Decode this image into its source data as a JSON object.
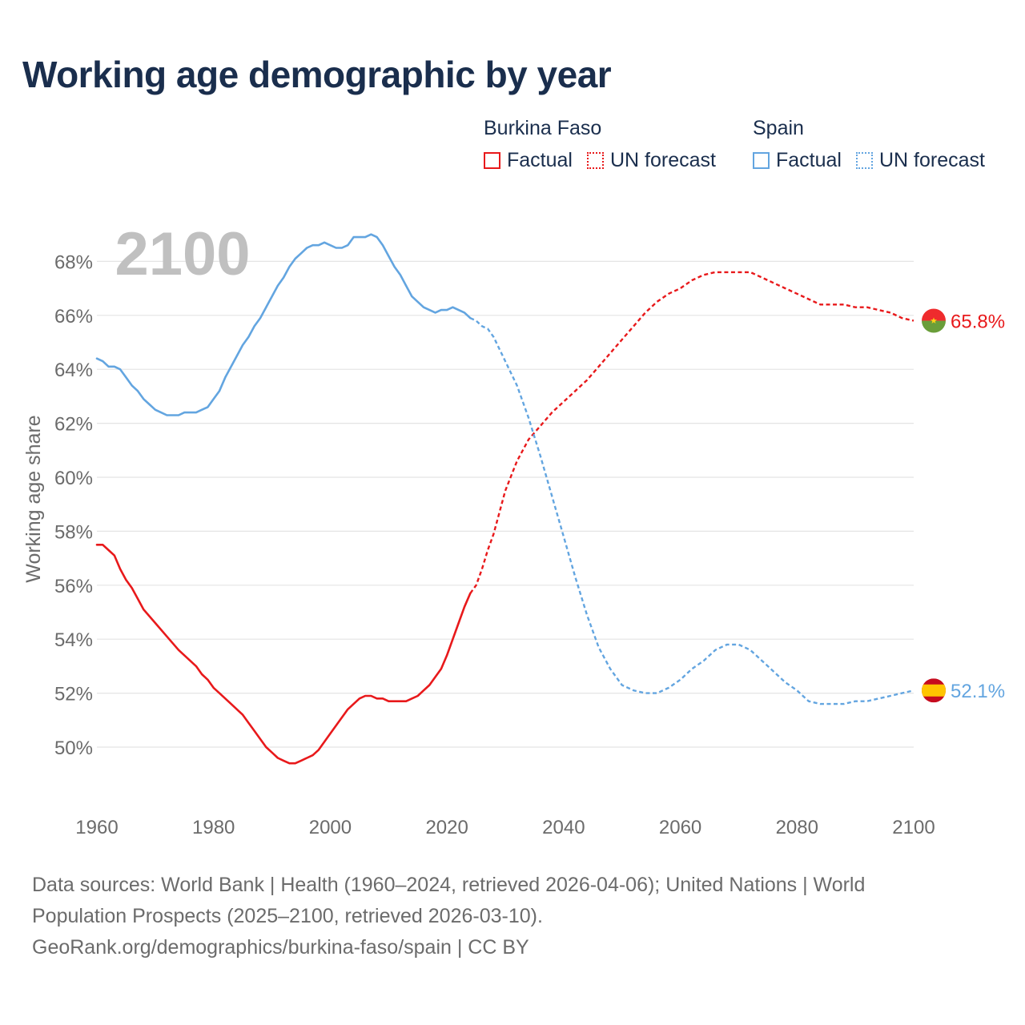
{
  "title": "Working age demographic by year",
  "legend": {
    "groups": [
      {
        "name": "Burkina Faso",
        "factual_label": "Factual",
        "forecast_label": "UN forecast",
        "color": "#e8191b"
      },
      {
        "name": "Spain",
        "factual_label": "Factual",
        "forecast_label": "UN forecast",
        "color": "#63a5e0"
      }
    ]
  },
  "footer": {
    "line1": "Data sources: World Bank | Health (1960–2024, retrieved 2026-04-06); United Nations | World",
    "line2": "Population Prospects (2025–2100, retrieved 2026-03-10).",
    "line3": "GeoRank.org/demographics/burkina-faso/spain | CC BY"
  },
  "chart_data": {
    "type": "line",
    "title": "Working age demographic by year",
    "year_overlay": "2100",
    "xlabel": "",
    "ylabel": "Working age share",
    "xlim": [
      1960,
      2100
    ],
    "ylim": [
      48,
      70
    ],
    "grid": true,
    "xticks": [
      1960,
      1980,
      2000,
      2020,
      2040,
      2060,
      2080,
      2100
    ],
    "xtick_labels": [
      "1960",
      "1980",
      "2000",
      "2020",
      "2040",
      "2060",
      "2080",
      "2100"
    ],
    "yticks": [
      50,
      52,
      54,
      56,
      58,
      60,
      62,
      64,
      66,
      68
    ],
    "ytick_labels": [
      "50%",
      "52%",
      "54%",
      "56%",
      "58%",
      "60%",
      "62%",
      "64%",
      "66%",
      "68%"
    ],
    "series": [
      {
        "name": "Burkina Faso",
        "color": "#e8191b",
        "end_label": "65.8%",
        "flag": "burkina-faso-flag",
        "factual": {
          "x": [
            1960,
            1961,
            1962,
            1963,
            1964,
            1965,
            1966,
            1967,
            1968,
            1970,
            1972,
            1974,
            1975,
            1976,
            1977,
            1978,
            1979,
            1980,
            1981,
            1983,
            1985,
            1986,
            1987,
            1988,
            1989,
            1990,
            1991,
            1992,
            1993,
            1994,
            1995,
            1996,
            1997,
            1998,
            2000,
            2002,
            2003,
            2004,
            2005,
            2006,
            2007,
            2008,
            2009,
            2010,
            2011,
            2012,
            2013,
            2014,
            2015,
            2016,
            2017,
            2018,
            2019,
            2020,
            2021,
            2022,
            2023,
            2024
          ],
          "y": [
            57.5,
            57.5,
            57.3,
            57.1,
            56.6,
            56.2,
            55.9,
            55.5,
            55.1,
            54.6,
            54.1,
            53.6,
            53.4,
            53.2,
            53.0,
            52.7,
            52.5,
            52.2,
            52.0,
            51.6,
            51.2,
            50.9,
            50.6,
            50.3,
            50.0,
            49.8,
            49.6,
            49.5,
            49.4,
            49.4,
            49.5,
            49.6,
            49.7,
            49.9,
            50.5,
            51.1,
            51.4,
            51.6,
            51.8,
            51.9,
            51.9,
            51.8,
            51.8,
            51.7,
            51.7,
            51.7,
            51.7,
            51.8,
            51.9,
            52.1,
            52.3,
            52.6,
            52.9,
            53.4,
            54.0,
            54.6,
            55.2,
            55.7
          ]
        },
        "forecast": {
          "x": [
            2024,
            2025,
            2026,
            2027,
            2028,
            2030,
            2032,
            2034,
            2036,
            2038,
            2040,
            2042,
            2044,
            2046,
            2048,
            2050,
            2052,
            2054,
            2056,
            2058,
            2060,
            2062,
            2064,
            2066,
            2068,
            2070,
            2072,
            2074,
            2076,
            2078,
            2080,
            2082,
            2084,
            2086,
            2088,
            2090,
            2092,
            2094,
            2096,
            2098,
            2100
          ],
          "y": [
            55.7,
            56.0,
            56.6,
            57.3,
            57.9,
            59.5,
            60.6,
            61.4,
            61.9,
            62.4,
            62.8,
            63.2,
            63.6,
            64.1,
            64.6,
            65.1,
            65.6,
            66.1,
            66.5,
            66.8,
            67.0,
            67.3,
            67.5,
            67.6,
            67.6,
            67.6,
            67.6,
            67.4,
            67.2,
            67.0,
            66.8,
            66.6,
            66.4,
            66.4,
            66.4,
            66.3,
            66.3,
            66.2,
            66.1,
            65.9,
            65.8
          ]
        }
      },
      {
        "name": "Spain",
        "color": "#63a5e0",
        "end_label": "52.1%",
        "flag": "spain-flag",
        "factual": {
          "x": [
            1960,
            1961,
            1962,
            1963,
            1964,
            1965,
            1966,
            1967,
            1968,
            1969,
            1970,
            1971,
            1972,
            1973,
            1974,
            1975,
            1976,
            1977,
            1978,
            1979,
            1980,
            1981,
            1982,
            1983,
            1984,
            1985,
            1986,
            1987,
            1988,
            1989,
            1990,
            1991,
            1992,
            1993,
            1994,
            1995,
            1996,
            1997,
            1998,
            1999,
            2000,
            2001,
            2002,
            2003,
            2004,
            2005,
            2006,
            2007,
            2008,
            2009,
            2010,
            2011,
            2012,
            2013,
            2014,
            2015,
            2016,
            2017,
            2018,
            2019,
            2020,
            2021,
            2022,
            2023,
            2024
          ],
          "y": [
            64.4,
            64.3,
            64.1,
            64.1,
            64.0,
            63.7,
            63.4,
            63.2,
            62.9,
            62.7,
            62.5,
            62.4,
            62.3,
            62.3,
            62.3,
            62.4,
            62.4,
            62.4,
            62.5,
            62.6,
            62.9,
            63.2,
            63.7,
            64.1,
            64.5,
            64.9,
            65.2,
            65.6,
            65.9,
            66.3,
            66.7,
            67.1,
            67.4,
            67.8,
            68.1,
            68.3,
            68.5,
            68.6,
            68.6,
            68.7,
            68.6,
            68.5,
            68.5,
            68.6,
            68.9,
            68.9,
            68.9,
            69.0,
            68.9,
            68.6,
            68.2,
            67.8,
            67.5,
            67.1,
            66.7,
            66.5,
            66.3,
            66.2,
            66.1,
            66.2,
            66.2,
            66.3,
            66.2,
            66.1,
            65.9
          ]
        },
        "forecast": {
          "x": [
            2024,
            2025,
            2026,
            2027,
            2028,
            2030,
            2032,
            2034,
            2036,
            2038,
            2040,
            2042,
            2044,
            2046,
            2048,
            2050,
            2052,
            2054,
            2056,
            2058,
            2060,
            2062,
            2064,
            2066,
            2068,
            2070,
            2072,
            2074,
            2076,
            2078,
            2080,
            2082,
            2084,
            2086,
            2088,
            2090,
            2092,
            2094,
            2096,
            2098,
            2100
          ],
          "y": [
            65.9,
            65.8,
            65.6,
            65.5,
            65.2,
            64.3,
            63.4,
            62.2,
            60.8,
            59.3,
            57.8,
            56.3,
            54.9,
            53.7,
            52.9,
            52.3,
            52.1,
            52.0,
            52.0,
            52.2,
            52.5,
            52.9,
            53.2,
            53.6,
            53.8,
            53.8,
            53.6,
            53.2,
            52.8,
            52.4,
            52.1,
            51.7,
            51.6,
            51.6,
            51.6,
            51.7,
            51.7,
            51.8,
            51.9,
            52.0,
            52.1
          ]
        }
      }
    ]
  }
}
